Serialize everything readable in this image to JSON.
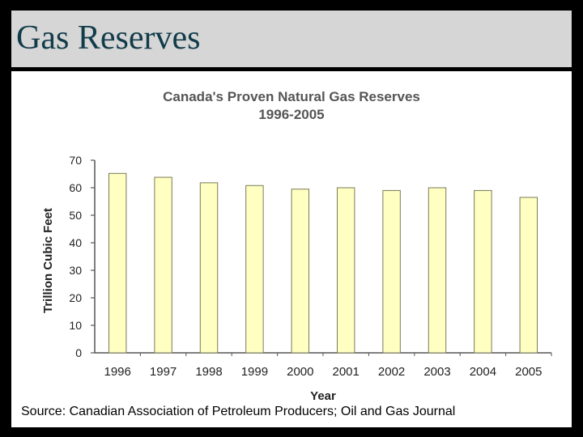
{
  "slide": {
    "title": "Gas Reserves"
  },
  "chart_data": {
    "type": "bar",
    "title": "Canada's Proven Natural Gas Reserves",
    "subtitle": "1996-2005",
    "xlabel": "Year",
    "ylabel": "Trillion Cubic Feet",
    "categories": [
      "1996",
      "1997",
      "1998",
      "1999",
      "2000",
      "2001",
      "2002",
      "2003",
      "2004",
      "2005"
    ],
    "values": [
      65.2,
      63.8,
      61.8,
      60.8,
      59.5,
      60.0,
      59.0,
      60.0,
      59.0,
      56.5
    ],
    "ylim": [
      0,
      70
    ],
    "yticks": [
      "0",
      "10",
      "20",
      "30",
      "40",
      "50",
      "60",
      "70"
    ],
    "grid": false,
    "legend": "none",
    "bar_color": "#ffffc2",
    "bar_edge_color": "#7a7a5a",
    "source": "Source: Canadian Association of Petroleum Producers; Oil and Gas Journal"
  },
  "colors": {
    "background": "#000000",
    "title_bar": "#d6d6d6",
    "title_text": "#123c4a"
  }
}
